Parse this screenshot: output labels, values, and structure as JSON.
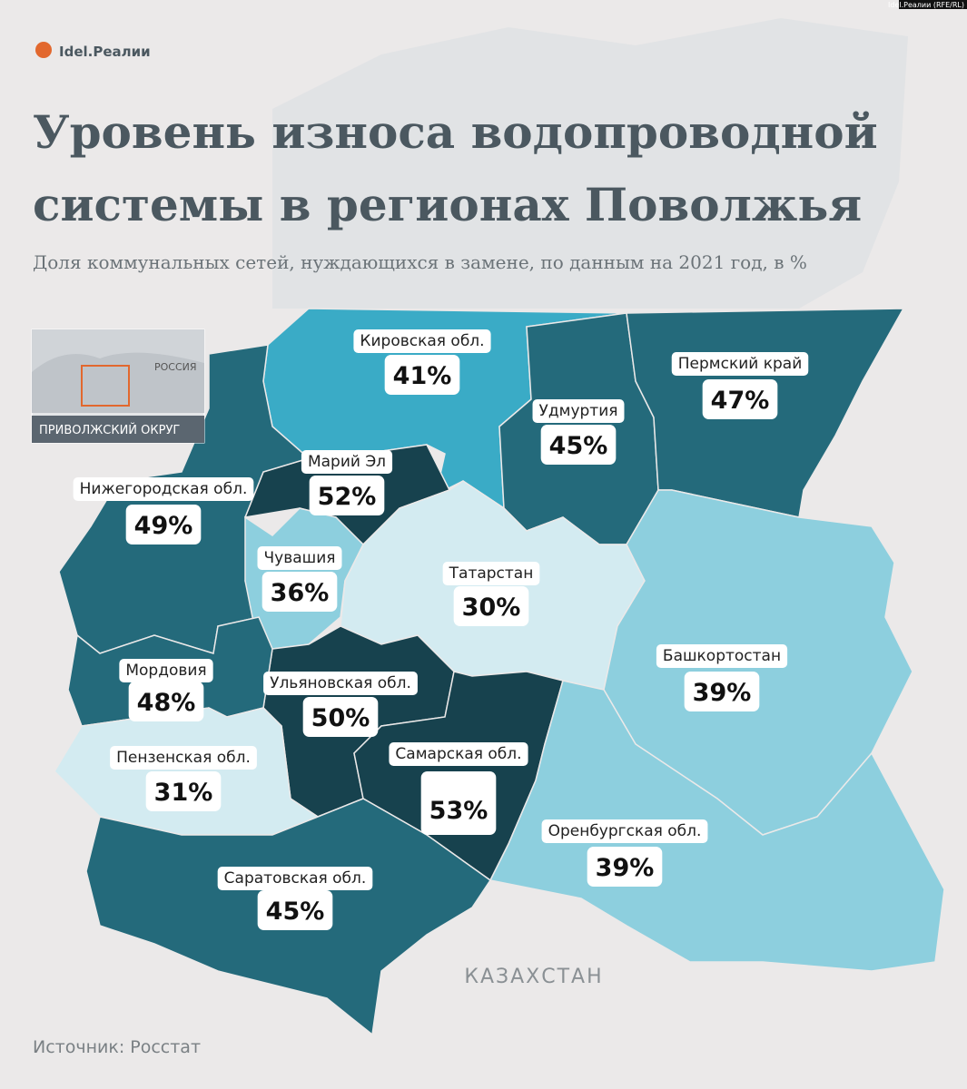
{
  "header": {
    "logo": "Idel.Реалии",
    "credit": "Idel.Реалии (RFE/RL)",
    "title": "Уровень износа водопроводной системы в регионах Поволжья",
    "subtitle": "Доля коммунальных сетей, нуждающихся в замене, по данным на 2021 год, в %"
  },
  "inset": {
    "country": "РОССИЯ",
    "district": "ПРИВОЛЖСКИЙ ОКРУГ"
  },
  "neighbor": "КАЗАХСТАН",
  "source": "Источник: Росстат",
  "regions": [
    {
      "name": "Кировская обл.",
      "value": 41,
      "label": "41%",
      "color": "#3aabc6"
    },
    {
      "name": "Удмуртия",
      "value": 45,
      "label": "45%",
      "color": "#246a7b"
    },
    {
      "name": "Пермский край",
      "value": 47,
      "label": "47%",
      "color": "#246a7b"
    },
    {
      "name": "Марий Эл",
      "value": 52,
      "label": "52%",
      "color": "#17424e"
    },
    {
      "name": "Нижегородская обл.",
      "value": 49,
      "label": "49%",
      "color": "#246a7b"
    },
    {
      "name": "Чувашия",
      "value": 36,
      "label": "36%",
      "color": "#8dcfde"
    },
    {
      "name": "Татарстан",
      "value": 30,
      "label": "30%",
      "color": "#d3ebf1"
    },
    {
      "name": "Башкортостан",
      "value": 39,
      "label": "39%",
      "color": "#8dcfde"
    },
    {
      "name": "Ульяновская обл.",
      "value": 50,
      "label": "50%",
      "color": "#17424e"
    },
    {
      "name": "Самарская обл.",
      "value": 53,
      "label": "53%",
      "color": "#17424e",
      "highlight": true
    },
    {
      "name": "Мордовия",
      "value": 48,
      "label": "48%",
      "color": "#246a7b"
    },
    {
      "name": "Пензенская обл.",
      "value": 31,
      "label": "31%",
      "color": "#d3ebf1"
    },
    {
      "name": "Саратовская обл.",
      "value": 45,
      "label": "45%",
      "color": "#246a7b"
    },
    {
      "name": "Оренбургская обл.",
      "value": 39,
      "label": "39%",
      "color": "#8dcfde"
    }
  ]
}
